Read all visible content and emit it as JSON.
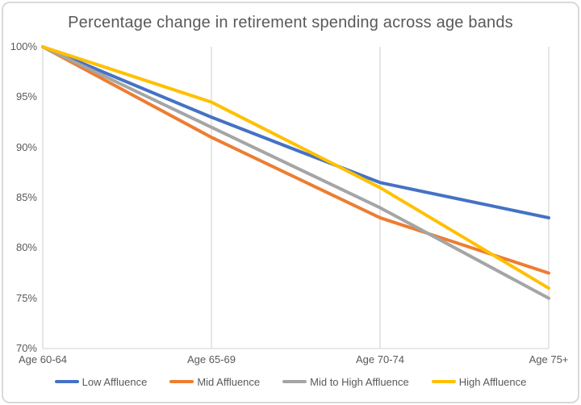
{
  "chart_data": {
    "type": "line",
    "title": "Percentage change in retirement spending across age bands",
    "categories": [
      "Age 60-64",
      "Age 65-69",
      "Age 70-74",
      "Age 75+"
    ],
    "series": [
      {
        "name": "Low Affluence",
        "color": "#4472C4",
        "values": [
          100,
          93,
          86.5,
          83
        ]
      },
      {
        "name": "Mid Affluence",
        "color": "#ED7D31",
        "values": [
          100,
          91,
          83,
          77.5
        ]
      },
      {
        "name": "Mid to High Affluence",
        "color": "#A5A5A5",
        "values": [
          100,
          92,
          84,
          75
        ]
      },
      {
        "name": "High Affluence",
        "color": "#FFC000",
        "values": [
          100,
          94.5,
          86,
          76
        ]
      }
    ],
    "y_ticks": [
      {
        "label": "100%",
        "value": 100
      },
      {
        "label": "95%",
        "value": 95
      },
      {
        "label": "90%",
        "value": 90
      },
      {
        "label": "85%",
        "value": 85
      },
      {
        "label": "80%",
        "value": 80
      },
      {
        "label": "75%",
        "value": 75
      },
      {
        "label": "70%",
        "value": 70
      }
    ],
    "ylim": [
      70,
      100
    ],
    "xlabel": "",
    "ylabel": "",
    "grid": "vertical-only",
    "legend_position": "bottom"
  },
  "colors": {
    "background": "#FFFFFF",
    "frame_border": "#D9D9D9",
    "gridline": "#D9D9D9",
    "axis": "#D9D9D9",
    "text": "#595959"
  }
}
